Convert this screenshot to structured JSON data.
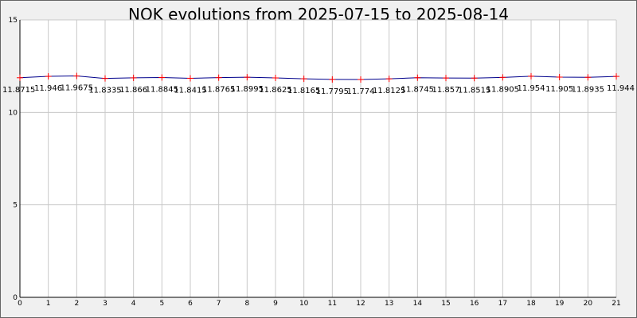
{
  "chart_data": {
    "type": "line",
    "title": "NOK evolutions from 2025-07-15 to 2025-08-14",
    "xlabel": "",
    "ylabel": "",
    "x": [
      0,
      1,
      2,
      3,
      4,
      5,
      6,
      7,
      8,
      9,
      10,
      11,
      12,
      13,
      14,
      15,
      16,
      17,
      18,
      19,
      20,
      21
    ],
    "x_ticks": [
      "0",
      "1",
      "2",
      "3",
      "4",
      "5",
      "6",
      "7",
      "8",
      "9",
      "10",
      "11",
      "12",
      "13",
      "14",
      "15",
      "16",
      "17",
      "18",
      "19",
      "20",
      "21"
    ],
    "y_ticks": [
      "0",
      "5",
      "10",
      "15"
    ],
    "xlim": [
      0,
      21
    ],
    "ylim": [
      0,
      15
    ],
    "grid": true,
    "series": [
      {
        "values": [
          11.8715,
          11.946,
          11.9675,
          11.8335,
          11.866,
          11.8845,
          11.8415,
          11.8765,
          11.8995,
          11.8625,
          11.8165,
          11.7795,
          11.774,
          11.8125,
          11.8745,
          11.857,
          11.8515,
          11.8905,
          11.954,
          11.905,
          11.8935,
          11.944
        ],
        "labels": [
          "11.8715",
          "11.946",
          "11.9675",
          "11.8335",
          "11.866",
          "11.8845",
          "11.8415",
          "11.8765",
          "11.8995",
          "11.8625",
          "11.8165",
          "11.7795",
          "11.774",
          "11.8125",
          "11.8745",
          "11.857",
          "11.8515",
          "11.8905",
          "11.954",
          "11.905",
          "11.8935",
          "11.944"
        ],
        "line_color": "#00008b",
        "marker_color": "#ff0000"
      }
    ]
  }
}
